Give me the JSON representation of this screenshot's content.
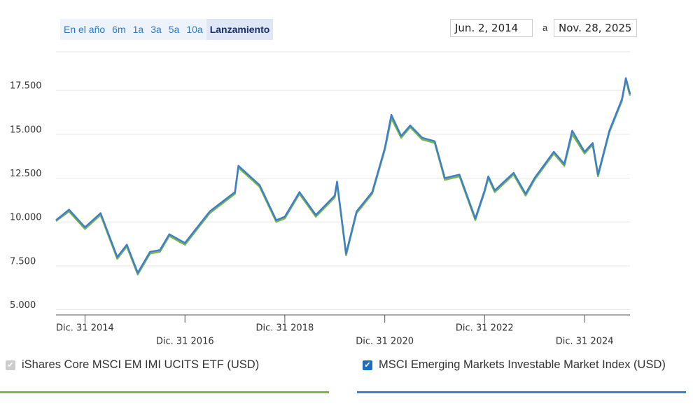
{
  "controls": {
    "ranges": [
      "En el año",
      "6m",
      "1a",
      "3a",
      "5a",
      "10a",
      "Lanzamiento"
    ],
    "selected_range": 6,
    "date_from": "Jun. 2, 2014",
    "date_sep": "a",
    "date_to": "Nov. 28, 2025"
  },
  "chart_data": {
    "type": "line",
    "x": [
      "2014-06-02",
      "2014-09-05",
      "2014-12-31",
      "2015-04-24",
      "2015-08-24",
      "2015-11-02",
      "2016-01-21",
      "2016-04-20",
      "2016-07-01",
      "2016-09-07",
      "2016-12-31",
      "2017-06-30",
      "2017-12-31",
      "2018-01-26",
      "2018-06-30",
      "2018-10-29",
      "2018-12-31",
      "2019-04-17",
      "2019-08-15",
      "2019-12-31",
      "2020-01-17",
      "2020-03-23",
      "2020-06-08",
      "2020-09-30",
      "2020-12-31",
      "2021-02-17",
      "2021-04-30",
      "2021-07-05",
      "2021-09-30",
      "2021-12-31",
      "2022-03-15",
      "2022-06-30",
      "2022-10-24",
      "2022-12-31",
      "2023-01-27",
      "2023-03-15",
      "2023-07-31",
      "2023-10-27",
      "2023-12-31",
      "2024-05-20",
      "2024-08-05",
      "2024-10-01",
      "2024-12-31",
      "2025-02-28",
      "2025-04-08",
      "2025-06-30",
      "2025-09-30",
      "2025-10-29",
      "2025-11-28"
    ],
    "series": [
      {
        "name": "iShares Core MSCI EM IMI UCITS ETF (USD)",
        "color": "#7ab648",
        "checked": true,
        "enabled": false,
        "values": [
          10050,
          10600,
          9600,
          10400,
          7900,
          8600,
          7000,
          8200,
          8300,
          9200,
          8700,
          10500,
          11600,
          13100,
          12000,
          10000,
          10200,
          11600,
          10300,
          11400,
          12200,
          8100,
          10500,
          11600,
          14100,
          15900,
          14800,
          15400,
          14700,
          14500,
          12400,
          12600,
          10100,
          11700,
          12500,
          11700,
          12700,
          11500,
          12400,
          13900,
          13200,
          15000,
          13900,
          14400,
          12600,
          15100,
          16900,
          18100,
          17200
        ]
      },
      {
        "name": "MSCI Emerging Markets Investable Market Index (USD)",
        "color": "#3d80c9",
        "checked": true,
        "enabled": true,
        "values": [
          10100,
          10700,
          9700,
          10500,
          8000,
          8700,
          7100,
          8300,
          8400,
          9300,
          8800,
          10600,
          11700,
          13200,
          12100,
          10100,
          10300,
          11700,
          10400,
          11500,
          12300,
          8200,
          10600,
          11700,
          14200,
          16100,
          14900,
          15500,
          14800,
          14600,
          12500,
          12700,
          10200,
          11800,
          12600,
          11800,
          12800,
          11600,
          12500,
          14000,
          13300,
          15200,
          14000,
          14500,
          12700,
          15200,
          17000,
          18200,
          17300
        ]
      }
    ],
    "xlim": [
      "2014-06-02",
      "2025-11-28"
    ],
    "xticks": [
      {
        "value": "2014-12-31",
        "label": "Dic. 31 2014"
      },
      {
        "value": "2016-12-31",
        "label": "Dic. 31 2016"
      },
      {
        "value": "2018-12-31",
        "label": "Dic. 31 2018"
      },
      {
        "value": "2020-12-31",
        "label": "Dic. 31 2020"
      },
      {
        "value": "2022-12-31",
        "label": "Dic. 31 2022"
      },
      {
        "value": "2024-12-31",
        "label": "Dic. 31 2024"
      }
    ],
    "ylim": [
      4700,
      19700
    ],
    "yticks": [
      {
        "value": 5000,
        "label": "5.000"
      },
      {
        "value": 7500,
        "label": "7.500"
      },
      {
        "value": 10000,
        "label": "10.000"
      },
      {
        "value": 12500,
        "label": "12.500"
      },
      {
        "value": 15000,
        "label": "15.000"
      },
      {
        "value": 17500,
        "label": "17.500"
      }
    ],
    "grid": true
  }
}
